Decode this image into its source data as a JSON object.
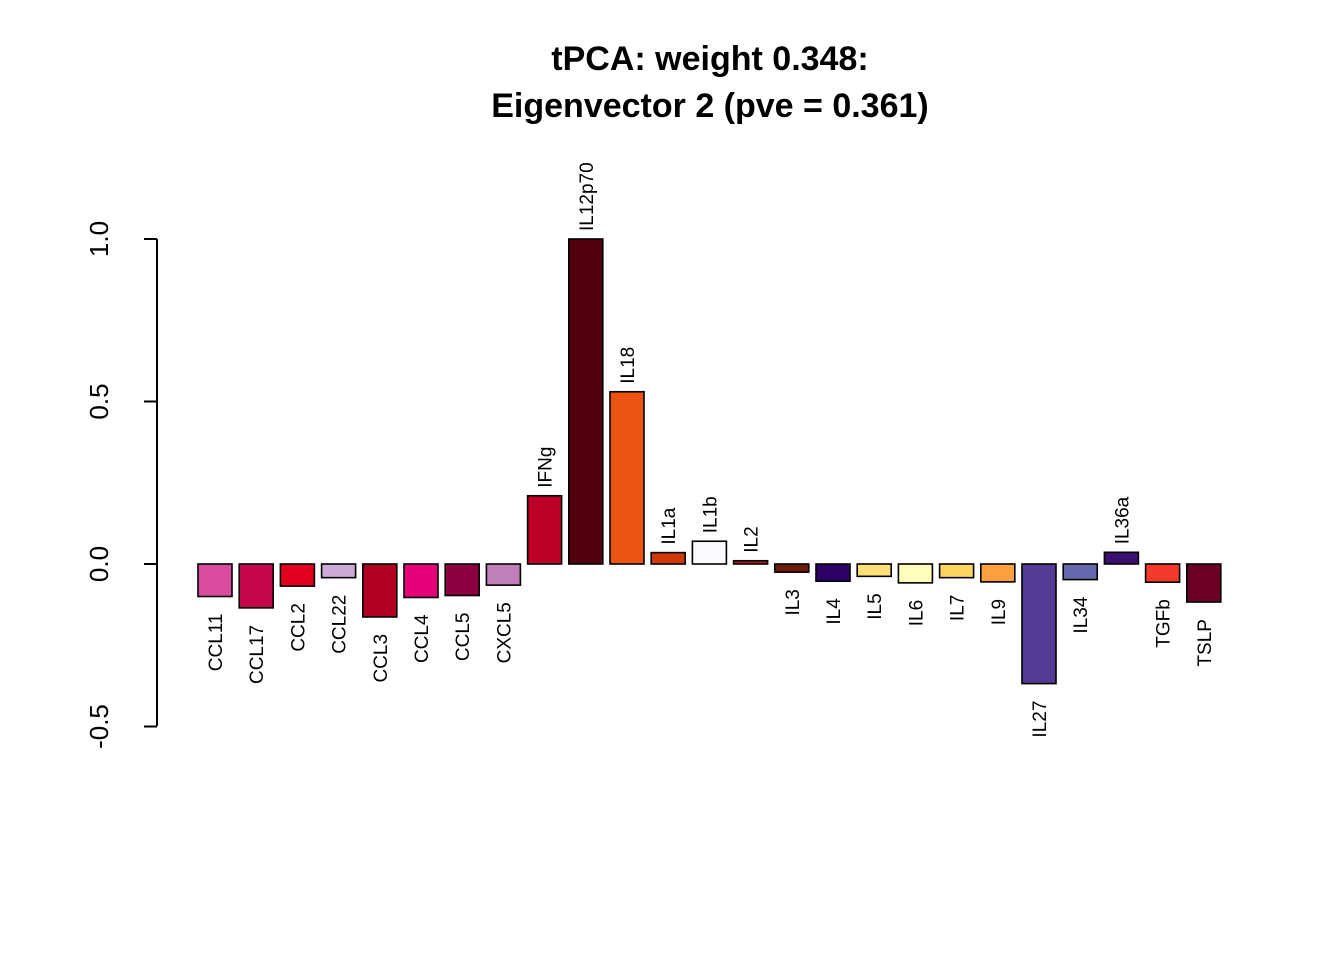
{
  "chart_data": {
    "type": "bar",
    "title": "tPCA: weight 0.348:",
    "subtitle": "Eigenvector 2 (pve = 0.361)",
    "xlabel": "",
    "ylabel": "",
    "ylim": [
      -0.5,
      1.0
    ],
    "yticks": [
      "-0.5",
      "0.0",
      "0.5",
      "1.0"
    ],
    "grid": false,
    "legend": "none",
    "categories": [
      "CCL11",
      "CCL17",
      "CCL2",
      "CCL22",
      "CCL3",
      "CCL4",
      "CCL5",
      "CXCL5",
      "IFNg",
      "IL12p70",
      "IL18",
      "IL1a",
      "IL1b",
      "IL2",
      "IL3",
      "IL4",
      "IL5",
      "IL6",
      "IL7",
      "IL9",
      "IL27",
      "IL34",
      "IL36a",
      "TGFb",
      "TSLP"
    ],
    "values": [
      -0.1,
      -0.135,
      -0.068,
      -0.042,
      -0.163,
      -0.103,
      -0.097,
      -0.065,
      0.21,
      1.0,
      0.53,
      0.035,
      0.07,
      0.01,
      -0.025,
      -0.053,
      -0.038,
      -0.058,
      -0.042,
      -0.055,
      -0.368,
      -0.048,
      0.036,
      -0.056,
      -0.117
    ],
    "colors": [
      "#d94ca0",
      "#c4074d",
      "#e3001e",
      "#cbaad4",
      "#b0001f",
      "#e5007a",
      "#8c0040",
      "#c07fbb",
      "#bd0026",
      "#52000d",
      "#ec5411",
      "#ce3a09",
      "#fafaff",
      "#b21d12",
      "#6e1c0c",
      "#2d0066",
      "#fee07a",
      "#fffcbc",
      "#fdd55e",
      "#fda03d",
      "#543c96",
      "#6669ae",
      "#3b0f6f",
      "#f43a2a",
      "#6b0022"
    ]
  }
}
